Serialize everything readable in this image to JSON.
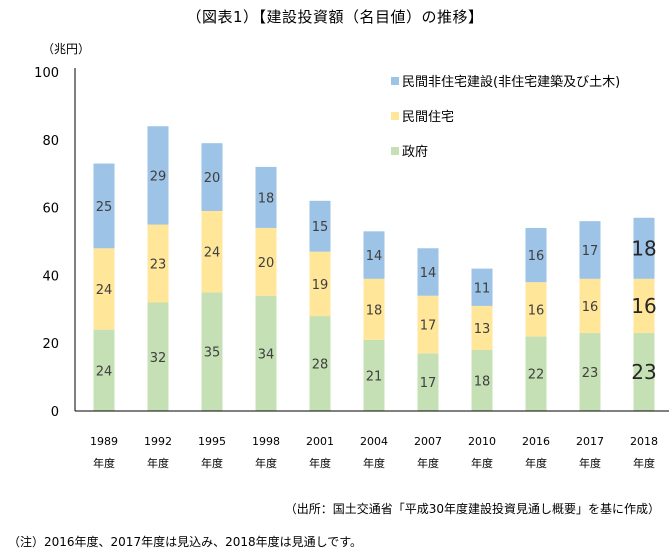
{
  "chart_data": {
    "type": "bar",
    "stacked": true,
    "title": "（図表1）【建設投資額（名目値）の推移】",
    "ylabel": "（兆円）",
    "xlabel": "",
    "ylim": [
      0,
      100
    ],
    "yticks": [
      0,
      20,
      40,
      60,
      80,
      100
    ],
    "grid": false,
    "legend_position": "top-right",
    "categories": [
      {
        "year": "1989",
        "suffix": "年度"
      },
      {
        "year": "1992",
        "suffix": "年度"
      },
      {
        "year": "1995",
        "suffix": "年度"
      },
      {
        "year": "1998",
        "suffix": "年度"
      },
      {
        "year": "2001",
        "suffix": "年度"
      },
      {
        "year": "2004",
        "suffix": "年度"
      },
      {
        "year": "2007",
        "suffix": "年度"
      },
      {
        "year": "2010",
        "suffix": "年度"
      },
      {
        "year": "2016",
        "suffix": "年度"
      },
      {
        "year": "2017",
        "suffix": "年度"
      },
      {
        "year": "2018",
        "suffix": "年度"
      }
    ],
    "series": [
      {
        "name": "政府",
        "color": "#c5e0b4",
        "values": [
          24,
          32,
          35,
          34,
          28,
          21,
          17,
          18,
          22,
          23,
          23
        ]
      },
      {
        "name": "民間住宅",
        "color": "#ffe699",
        "values": [
          24,
          23,
          24,
          20,
          19,
          18,
          17,
          13,
          16,
          16,
          16
        ]
      },
      {
        "name": "民間非住宅建設(非住宅建築及び土木)",
        "color": "#9dc3e6",
        "values": [
          25,
          29,
          20,
          18,
          15,
          14,
          14,
          11,
          16,
          17,
          18
        ]
      }
    ],
    "legend_order": [
      "民間非住宅建設(非住宅建築及び土木)",
      "民間住宅",
      "政府"
    ],
    "emphasized_category": "2018"
  },
  "notes": {
    "source": "（出所：国土交通省「平成30年度建設投資見通し概要」を基に作成）",
    "footnote": "（注）2016年度、2017年度は見込み、2018年度は見通しです。"
  }
}
